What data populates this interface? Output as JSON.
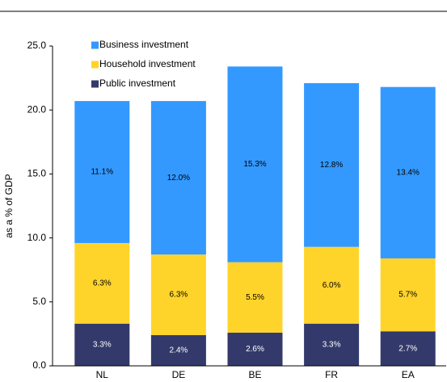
{
  "chart_data": {
    "type": "stacked_bar",
    "y_label": "as a % of GDP",
    "categories": [
      "NL",
      "DE",
      "BE",
      "FR",
      "EA"
    ],
    "series": [
      {
        "name": "Public investment",
        "color": "#333a6b",
        "values": [
          3.3,
          2.4,
          2.6,
          3.3,
          2.7
        ],
        "value_labels": [
          "3.3%",
          "2.4%",
          "2.6%",
          "3.3%",
          "2.7%"
        ]
      },
      {
        "name": "Household investment",
        "color": "#ffd42a",
        "values": [
          6.3,
          6.3,
          5.5,
          6.0,
          5.7
        ],
        "value_labels": [
          "6.3%",
          "6.3%",
          "5.5%",
          "6.0%",
          "5.7%"
        ]
      },
      {
        "name": "Business investment",
        "color": "#3399ff",
        "values": [
          11.1,
          12.0,
          15.3,
          12.8,
          13.4
        ],
        "value_labels": [
          "11.1%",
          "12.0%",
          "15.3%",
          "12.8%",
          "13.4%"
        ]
      }
    ],
    "ylim": [
      0,
      25
    ],
    "yticks": [
      {
        "value": 0,
        "label": "0.0"
      },
      {
        "value": 5,
        "label": "5.0"
      },
      {
        "value": 10,
        "label": "10.0"
      },
      {
        "value": 15,
        "label": "15.0"
      },
      {
        "value": 20,
        "label": "20.0"
      },
      {
        "value": 25,
        "label": "25.0"
      }
    ],
    "legend": "top-left"
  }
}
